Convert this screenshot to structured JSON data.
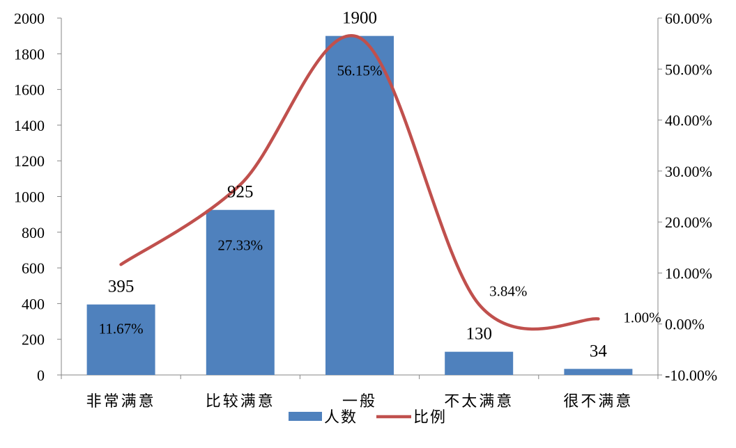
{
  "chart_data": {
    "type": "bar",
    "categories": [
      "非常满意",
      "比较满意",
      "一般",
      "不太满意",
      "很不满意"
    ],
    "series": [
      {
        "name": "人数",
        "type": "bar",
        "axis": "left",
        "values": [
          395,
          925,
          1900,
          130,
          34
        ],
        "color": "#4f81bd"
      },
      {
        "name": "比例",
        "type": "line",
        "axis": "right",
        "values": [
          11.67,
          27.33,
          56.15,
          3.84,
          1.0
        ],
        "labels": [
          "11.67%",
          "27.33%",
          "56.15%",
          "3.84%",
          "1.00%"
        ],
        "color": "#c0504d",
        "smooth": true
      }
    ],
    "bar_labels": [
      "395",
      "925",
      "1900",
      "130",
      "34"
    ],
    "y_left": {
      "ylim": [
        0,
        2000
      ],
      "ticks": [
        0,
        200,
        400,
        600,
        800,
        1000,
        1200,
        1400,
        1600,
        1800,
        2000
      ],
      "tick_labels": [
        "0",
        "200",
        "400",
        "600",
        "800",
        "1000",
        "1200",
        "1400",
        "1600",
        "1800",
        "2000"
      ]
    },
    "y_right": {
      "ylim": [
        -10,
        60
      ],
      "ticks": [
        -10,
        0,
        10,
        20,
        30,
        40,
        50,
        60
      ],
      "tick_labels": [
        "-10.00%",
        "0.00%",
        "10.00%",
        "20.00%",
        "30.00%",
        "40.00%",
        "50.00%",
        "60.00%"
      ]
    },
    "grid": false,
    "legend": {
      "position": "bottom",
      "entries": [
        "人数",
        "比例"
      ]
    }
  }
}
